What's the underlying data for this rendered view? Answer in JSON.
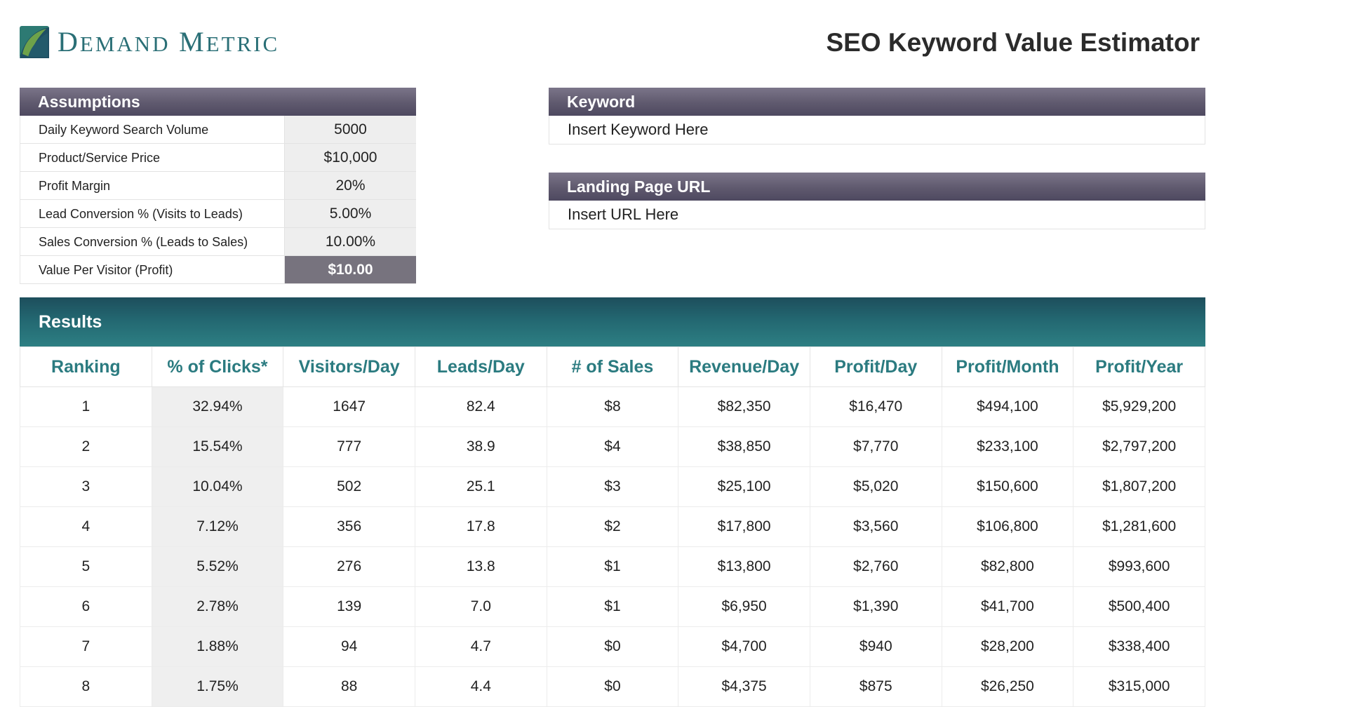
{
  "brand": {
    "name": "Demand Metric",
    "initial_d": "D",
    "rest_d": "EMAND",
    "initial_m": "M",
    "rest_m": "ETRIC"
  },
  "page_title": "SEO Keyword Value Estimator",
  "assumptions": {
    "header": "Assumptions",
    "rows": [
      {
        "label": "Daily Keyword Search Volume",
        "value": "5000"
      },
      {
        "label": "Product/Service Price",
        "value": "$10,000"
      },
      {
        "label": "Profit Margin",
        "value": "20%"
      },
      {
        "label": "Lead Conversion % (Visits to Leads)",
        "value": "5.00%"
      },
      {
        "label": "Sales Conversion % (Leads to Sales)",
        "value": "10.00%"
      },
      {
        "label": "Value Per Visitor (Profit)",
        "value": "$10.00"
      }
    ]
  },
  "keyword": {
    "header": "Keyword",
    "value": "Insert Keyword Here"
  },
  "landing_page": {
    "header": "Landing Page URL",
    "value": "Insert URL Here"
  },
  "results": {
    "header": "Results",
    "columns": [
      "Ranking",
      "% of Clicks*",
      "Visitors/Day",
      "Leads/Day",
      "# of Sales",
      "Revenue/Day",
      "Profit/Day",
      "Profit/Month",
      "Profit/Year"
    ],
    "rows": [
      [
        "1",
        "32.94%",
        "1647",
        "82.4",
        "$8",
        "$82,350",
        "$16,470",
        "$494,100",
        "$5,929,200"
      ],
      [
        "2",
        "15.54%",
        "777",
        "38.9",
        "$4",
        "$38,850",
        "$7,770",
        "$233,100",
        "$2,797,200"
      ],
      [
        "3",
        "10.04%",
        "502",
        "25.1",
        "$3",
        "$25,100",
        "$5,020",
        "$150,600",
        "$1,807,200"
      ],
      [
        "4",
        "7.12%",
        "356",
        "17.8",
        "$2",
        "$17,800",
        "$3,560",
        "$106,800",
        "$1,281,600"
      ],
      [
        "5",
        "5.52%",
        "276",
        "13.8",
        "$1",
        "$13,800",
        "$2,760",
        "$82,800",
        "$993,600"
      ],
      [
        "6",
        "2.78%",
        "139",
        "7.0",
        "$1",
        "$6,950",
        "$1,390",
        "$41,700",
        "$500,400"
      ],
      [
        "7",
        "1.88%",
        "94",
        "4.7",
        "$0",
        "$4,700",
        "$940",
        "$28,200",
        "$338,400"
      ],
      [
        "8",
        "1.75%",
        "88",
        "4.4",
        "$0",
        "$4,375",
        "$875",
        "$26,250",
        "$315,000"
      ]
    ]
  }
}
